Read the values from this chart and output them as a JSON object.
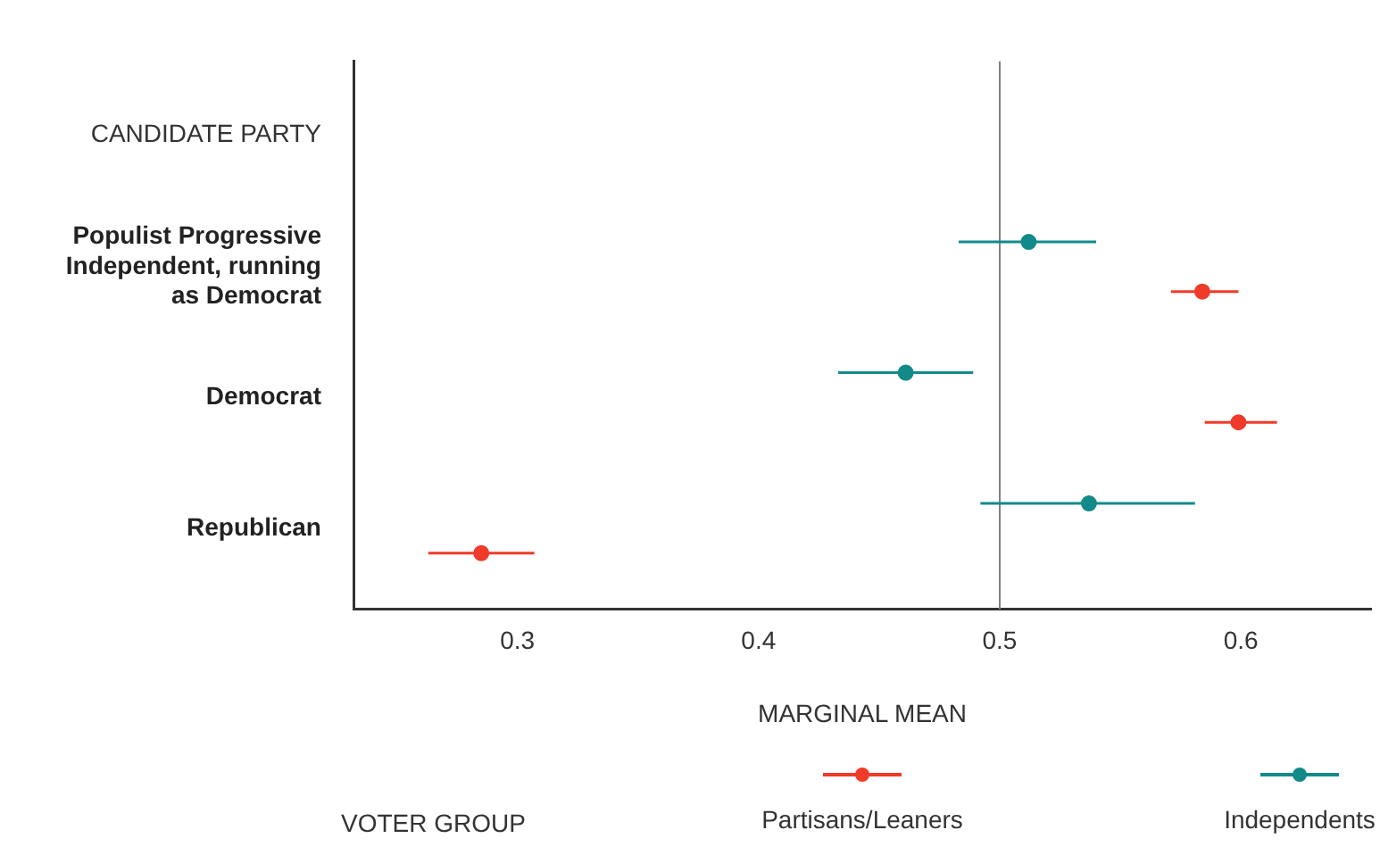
{
  "chart_data": {
    "type": "scatter",
    "orientation": "horizontal",
    "ylabel": "CANDIDATE PARTY",
    "xlabel": "MARGINAL MEAN",
    "legend_title": "VOTER GROUP",
    "legend": "bottom",
    "grid": false,
    "marker": "circle",
    "categories": [
      "Populist Progressive Independent, running as Democrat",
      "Democrat",
      "Republican"
    ],
    "xlim": [
      0.232,
      0.654
    ],
    "xticks": [
      0.3,
      0.4,
      0.5,
      0.6
    ],
    "ref_lines": [
      {
        "axis": "x",
        "value": 0.5,
        "color": "#808080"
      }
    ],
    "series": [
      {
        "name": "Partisans/Leaners",
        "color": "#f03a2a",
        "values": [
          0.584,
          0.599,
          0.285
        ],
        "errors": [
          [
            0.571,
            0.599
          ],
          [
            0.585,
            0.615
          ],
          [
            0.263,
            0.307
          ]
        ]
      },
      {
        "name": "Independents",
        "color": "#138a8a",
        "values": [
          0.512,
          0.461,
          0.537
        ],
        "errors": [
          [
            0.483,
            0.54
          ],
          [
            0.433,
            0.489
          ],
          [
            0.492,
            0.581
          ]
        ]
      }
    ]
  }
}
